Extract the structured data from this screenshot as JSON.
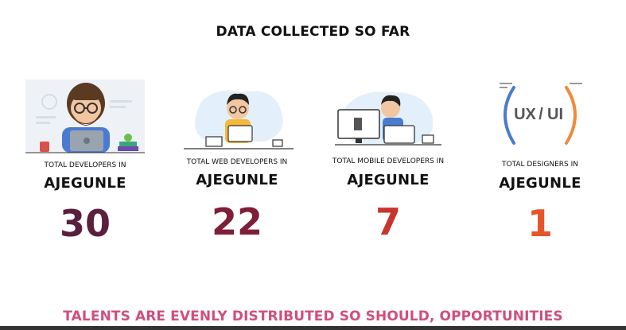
{
  "header": {
    "title": "DATA COLLECTED SO FAR"
  },
  "stats": [
    {
      "caption": "TOTAL DEVELOPERS IN",
      "place": "AJEGUNLE",
      "value": "30",
      "color": "#5a1e3e"
    },
    {
      "caption": "TOTAL WEB DEVELOPERS IN",
      "place": "AJEGUNLE",
      "value": "22",
      "color": "#7e1f3a"
    },
    {
      "caption": "TOTAL MOBILE DEVELOPERS IN",
      "place": "AJEGUNLE",
      "value": "7",
      "color": "#c8352d"
    },
    {
      "caption": "TOTAL DESIGNERS IN",
      "place": "AJEGUNLE",
      "value": "1",
      "color": "#e8542a"
    }
  ],
  "designer_art": {
    "left": "UX",
    "slash": "/",
    "right": "UI"
  },
  "footer": {
    "tagline": "TALENTS ARE EVENLY DISTRIBUTED SO SHOULD, OPPORTUNITIES",
    "color": "#d04f7a"
  },
  "colors": {
    "accent_blue": "#4a7bd0",
    "accent_orange": "#f08a3a",
    "light_blue": "#e3f0fb"
  },
  "icons": [
    "developer-illustration",
    "web-developer-illustration",
    "mobile-developer-illustration",
    "ux-ui-logo"
  ]
}
